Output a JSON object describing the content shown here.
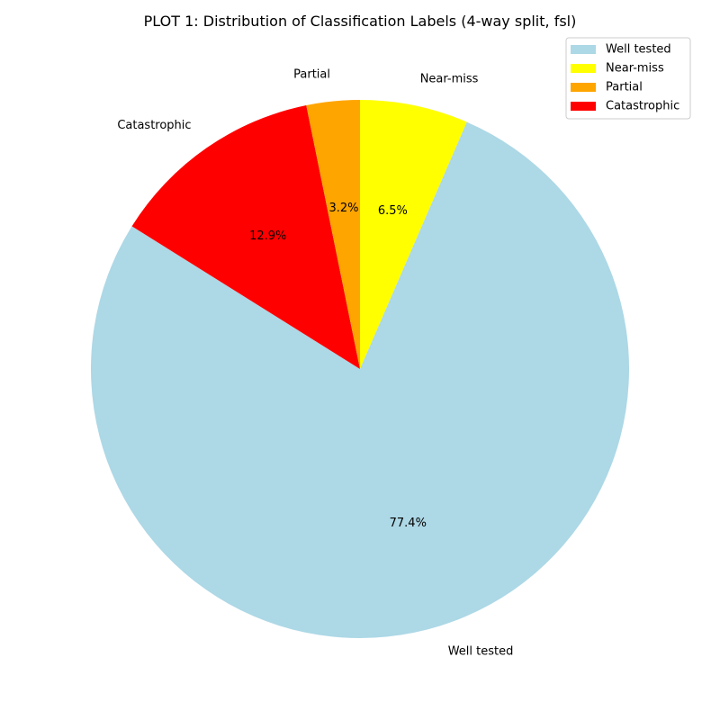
{
  "chart_data": {
    "type": "pie",
    "title": "PLOT 1: Distribution of Classification Labels (4-way split, fsl)",
    "legend_position": "top-right",
    "start_angle_deg": 90,
    "direction": "clockwise",
    "slices": [
      {
        "label": "Near-miss",
        "value": 6.5,
        "pct_label": "6.5%",
        "color": "#ffff00"
      },
      {
        "label": "Well tested",
        "value": 77.4,
        "pct_label": "77.4%",
        "color": "#add8e6"
      },
      {
        "label": "Catastrophic",
        "value": 12.9,
        "pct_label": "12.9%",
        "color": "#ff0000"
      },
      {
        "label": "Partial",
        "value": 3.2,
        "pct_label": "3.2%",
        "color": "#ffa500"
      }
    ],
    "legend": [
      {
        "label": "Well tested",
        "color": "#add8e6"
      },
      {
        "label": "Near-miss",
        "color": "#ffff00"
      },
      {
        "label": "Partial",
        "color": "#ffa500"
      },
      {
        "label": "Catastrophic",
        "color": "#ff0000"
      }
    ]
  }
}
